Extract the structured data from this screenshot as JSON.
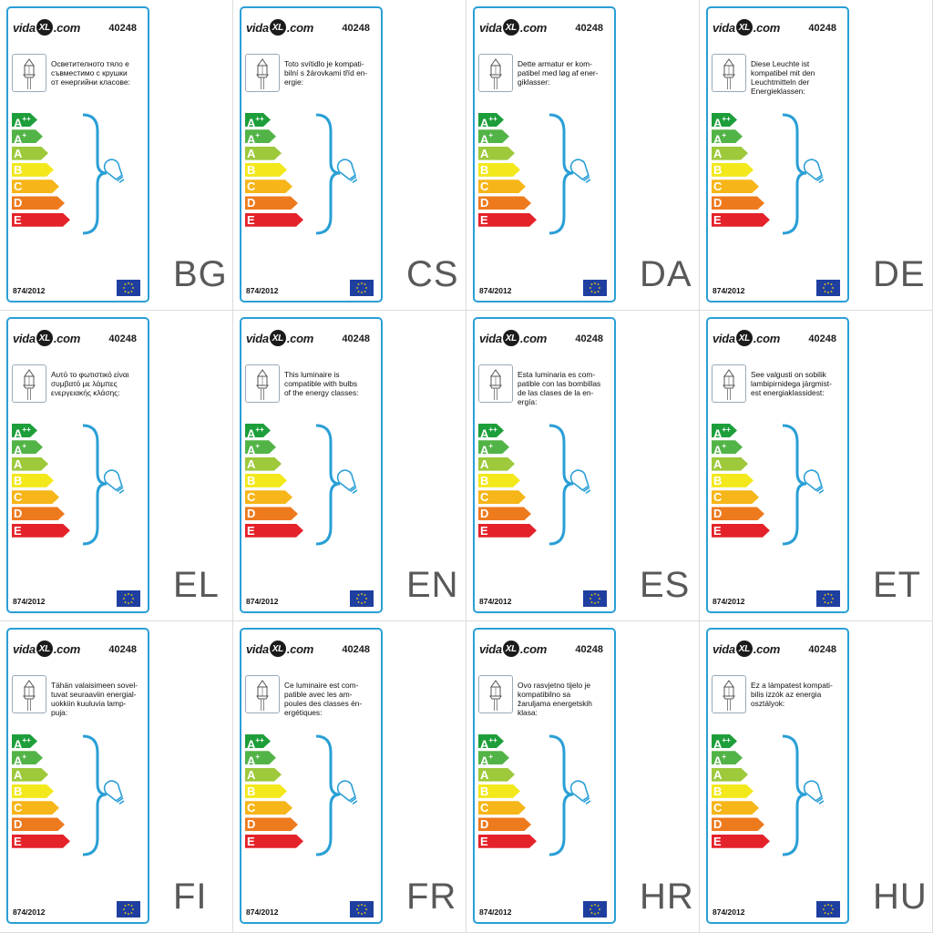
{
  "brand": {
    "prefix": "vida",
    "mark": "XL",
    "suffix": ".com"
  },
  "model": "40248",
  "regulation": "874/2012",
  "classes": [
    {
      "letter": "A",
      "sup": "++",
      "color": "#1d9e3a",
      "width": 28
    },
    {
      "letter": "A",
      "sup": "+",
      "color": "#52b447",
      "width": 34
    },
    {
      "letter": "A",
      "sup": "",
      "color": "#9dc93b",
      "width": 40
    },
    {
      "letter": "B",
      "sup": "",
      "color": "#f2e81c",
      "width": 46
    },
    {
      "letter": "C",
      "sup": "",
      "color": "#f6b518",
      "width": 52
    },
    {
      "letter": "D",
      "sup": "",
      "color": "#ee7a1e",
      "width": 58
    },
    {
      "letter": "E",
      "sup": "",
      "color": "#e4222a",
      "width": 64
    }
  ],
  "colors": {
    "card_border": "#2a9fd6",
    "brace": "#2a9fd6",
    "eu_blue": "#1f3fa0",
    "eu_star": "#ffd400"
  },
  "labels": [
    {
      "code": "BG",
      "text": "Осветителното тяло е\nсъвместимо с крушки\nот енергийни класове:"
    },
    {
      "code": "CS",
      "text": "Toto svítidlo je kompati-\nbilní s žárovkami tříd en-\nergie:"
    },
    {
      "code": "DA",
      "text": "Dette armatur er kom-\npatibel med løg af ener-\ngiklasser:"
    },
    {
      "code": "DE",
      "text": "Diese Leuchte ist\nkompatibel mit den\nLeuchtmitteln der\nEnergieklassen:"
    },
    {
      "code": "EL",
      "text": "Αυτό το φωτιστικό είναι\nσυμβατό με λάμπες\nενεργειακής κλάσης:"
    },
    {
      "code": "EN",
      "text": "This luminaire is\ncompatible with bulbs\nof the energy classes:"
    },
    {
      "code": "ES",
      "text": "Esta luminaria es com-\npatible con las bombillas\nde las clases de la en-\nergía:"
    },
    {
      "code": "ET",
      "text": "See valgusti on sobilik\nlambipirnidega järgmist-\nest energiaklassidest:"
    },
    {
      "code": "FI",
      "text": "Tähän valaisimeen sovel-\ntuvat seuraaviin energial-\nuokkiin kuuluvia lamp-\npuja:"
    },
    {
      "code": "FR",
      "text": "Ce luminaire est com-\npatible avec les am-\npoules des classes én-\nergétiques:"
    },
    {
      "code": "HR",
      "text": "Ovo rasvjetno tijelo je\nkompatibilno sa\nžaruljama energetskih\nklasa:"
    },
    {
      "code": "HU",
      "text": "Ez a lámpatest kompati-\nbilis izzók az energia\nosztályok:"
    }
  ]
}
